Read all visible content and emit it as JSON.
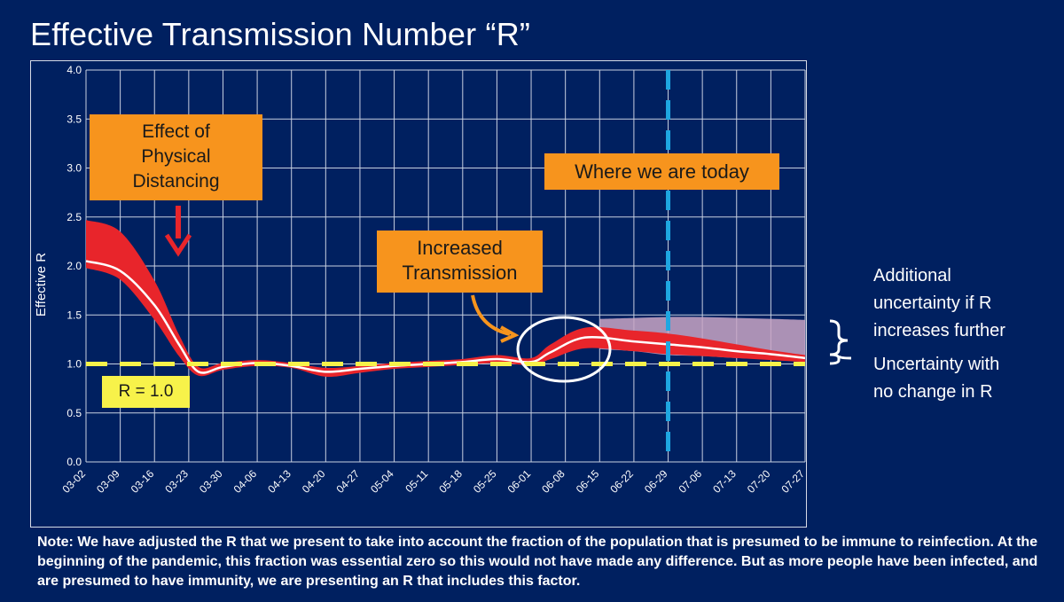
{
  "title": "Effective Transmission Number “R”",
  "annotations": {
    "distancing": [
      "Effect of",
      "Physical",
      "Distancing"
    ],
    "today": "Where we are today",
    "increased": [
      "Increased",
      "Transmission"
    ],
    "r_line": "R = 1.0",
    "additional_uncertainty": [
      "Additional",
      "uncertainty if R",
      "increases further"
    ],
    "uncertainty_no_change": [
      "Uncertainty with",
      "no change in R"
    ]
  },
  "note": "Note: We have adjusted the R that we present to take into account the fraction of the population that is presumed to be immune to reinfection.  At the beginning of the pandemic, this fraction was essential zero so this would not have made any difference.  But as more people have been infected, and are presumed to have immunity, we are presenting an R that includes this factor.",
  "colors": {
    "background": "#002060",
    "band": "#e8252b",
    "additional_band": "#c9a6c4",
    "median_line": "#ffffff",
    "reference_line": "#f7f24a",
    "today_line": "#1ea7e1",
    "callout": "#f7941d"
  },
  "chart_data": {
    "type": "line",
    "ylabel": "Effective R",
    "ylim": [
      0,
      4.0
    ],
    "yticks": [
      "0.0",
      "0.5",
      "1.0",
      "1.5",
      "2.0",
      "2.5",
      "3.0",
      "3.5",
      "4.0"
    ],
    "xticks": [
      "03-02",
      "03-09",
      "03-16",
      "03-23",
      "03-30",
      "04-06",
      "04-13",
      "04-20",
      "04-27",
      "05-04",
      "05-11",
      "05-18",
      "05-25",
      "06-01",
      "06-08",
      "06-15",
      "06-22",
      "06-29",
      "07-06",
      "07-13",
      "07-20",
      "07-27"
    ],
    "grid": true,
    "reference_line": {
      "y": 1.0,
      "label": "R = 1.0"
    },
    "today_marker": "06-29",
    "series": [
      {
        "x": [
          "03-02",
          "03-09",
          "03-16",
          "03-21",
          "03-25",
          "03-30",
          "04-06",
          "04-13",
          "04-20",
          "04-27",
          "05-04",
          "05-11",
          "05-18",
          "05-25",
          "06-01",
          "06-05",
          "06-12",
          "06-22",
          "06-29",
          "07-06",
          "07-13",
          "07-20",
          "07-27"
        ],
        "values": [
          2.05,
          1.95,
          1.6,
          1.2,
          0.92,
          0.97,
          1.01,
          0.98,
          0.92,
          0.95,
          0.98,
          1.0,
          1.02,
          1.05,
          1.02,
          1.12,
          1.27,
          1.23,
          1.2,
          1.17,
          1.13,
          1.1,
          1.06
        ]
      }
    ],
    "bands": [
      {
        "x": [
          "03-02",
          "03-09",
          "03-16",
          "03-21",
          "03-25",
          "03-30",
          "04-06",
          "04-13",
          "04-20",
          "04-27",
          "05-04",
          "05-11",
          "05-18",
          "05-25",
          "06-01",
          "06-05",
          "06-12",
          "06-22",
          "06-29",
          "07-06",
          "07-13",
          "07-20",
          "07-27"
        ],
        "upper": [
          2.47,
          2.35,
          1.85,
          1.3,
          0.97,
          1.01,
          1.04,
          1.01,
          0.96,
          0.98,
          1.01,
          1.03,
          1.05,
          1.09,
          1.06,
          1.2,
          1.37,
          1.34,
          1.31,
          1.26,
          1.2,
          1.14,
          1.09
        ],
        "lower": [
          1.98,
          1.86,
          1.45,
          1.08,
          0.88,
          0.94,
          0.98,
          0.96,
          0.87,
          0.91,
          0.95,
          0.97,
          0.99,
          1.01,
          0.99,
          1.05,
          1.16,
          1.13,
          1.1,
          1.08,
          1.06,
          1.04,
          1.02
        ]
      },
      {
        "x": [
          "06-15",
          "06-22",
          "06-29",
          "07-06",
          "07-13",
          "07-20",
          "07-27"
        ],
        "upper": [
          1.46,
          1.47,
          1.48,
          1.48,
          1.47,
          1.46,
          1.45
        ],
        "lower": [
          1.15,
          1.13,
          1.09,
          1.08,
          1.06,
          1.05,
          1.03
        ]
      }
    ]
  }
}
